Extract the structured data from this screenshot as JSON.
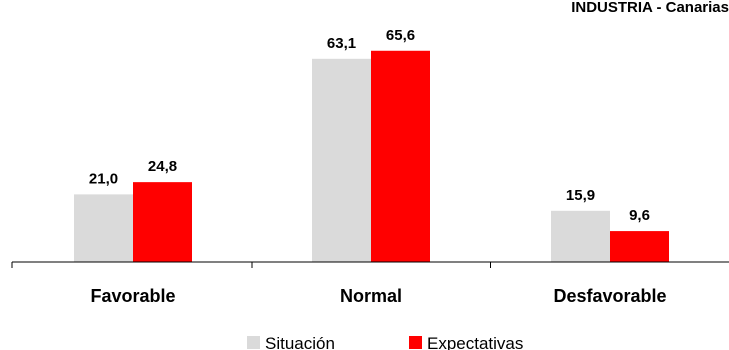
{
  "chart_data": {
    "type": "bar",
    "title": "INDUSTRIA - Canarias",
    "categories": [
      "Favorable",
      "Normal",
      "Desfavorable"
    ],
    "series": [
      {
        "name": "Situación",
        "values": [
          21.0,
          63.1,
          15.9
        ],
        "color": "#dadada"
      },
      {
        "name": "Expectativas",
        "values": [
          24.8,
          65.6,
          9.6
        ],
        "color": "#ff0000"
      }
    ],
    "value_labels": [
      [
        "21,0",
        "63,1",
        "15,9"
      ],
      [
        "24,8",
        "65,6",
        "9,6"
      ]
    ],
    "ylim": [
      0,
      70
    ],
    "grid": false,
    "legend_position": "bottom"
  }
}
